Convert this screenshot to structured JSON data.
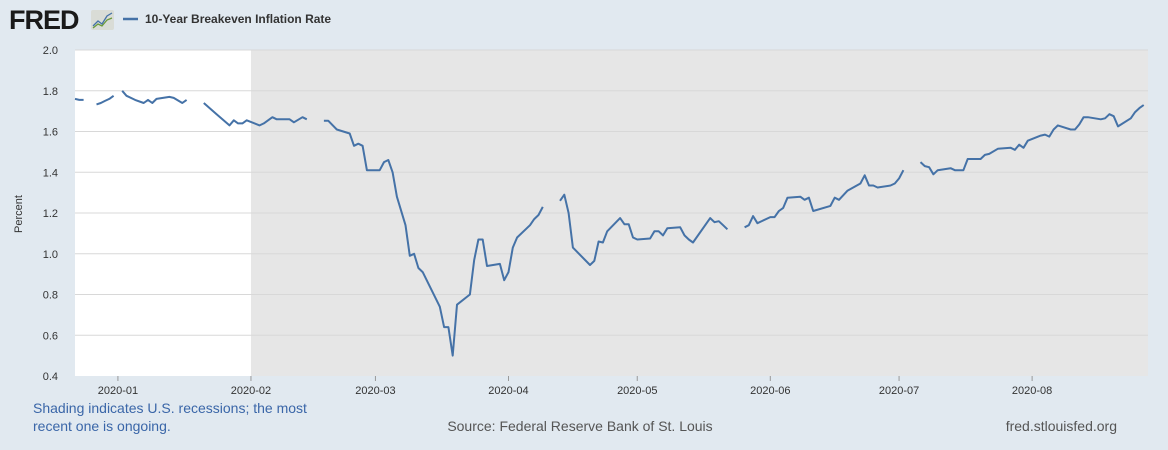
{
  "header": {
    "logo_text": "FRED",
    "legend_label": "10-Year Breakeven Inflation Rate"
  },
  "footer": {
    "shading_note_line1": "Shading indicates U.S. recessions; the most",
    "shading_note_line2": "recent one is ongoing.",
    "source": "Source: Federal Reserve Bank of St. Louis",
    "site": "fred.stlouisfed.org"
  },
  "colors": {
    "series": "#4572a7",
    "recession": "#e6e6e6",
    "plot_bg": "#ffffff",
    "page_bg": "#e1e9f0",
    "note_text": "#3a66a8"
  },
  "chart_data": {
    "type": "line",
    "title": "10-Year Breakeven Inflation Rate",
    "xlabel": "",
    "ylabel": "Percent",
    "xlim": [
      "2019-12-22",
      "2020-08-28"
    ],
    "ylim": [
      0.4,
      2.0
    ],
    "yticks": [
      0.4,
      0.6,
      0.8,
      1.0,
      1.2,
      1.4,
      1.6,
      1.8,
      2.0
    ],
    "xticks": [
      "2020-01",
      "2020-02",
      "2020-03",
      "2020-04",
      "2020-05",
      "2020-06",
      "2020-07",
      "2020-08"
    ],
    "grid": "horizontal",
    "recession_start": "2020-02-01",
    "series": [
      {
        "name": "10-Year Breakeven Inflation Rate",
        "segments": [
          [
            [
              "2019-12-22",
              1.76
            ],
            [
              "2019-12-23",
              1.755
            ],
            [
              "2019-12-24",
              1.755
            ]
          ],
          [
            [
              "2019-12-27",
              1.733
            ],
            [
              "2019-12-28",
              1.74
            ],
            [
              "2019-12-29",
              1.75
            ],
            [
              "2019-12-30",
              1.76
            ],
            [
              "2019-12-31",
              1.775
            ]
          ],
          [
            [
              "2020-01-02",
              1.8
            ],
            [
              "2020-01-03",
              1.775
            ],
            [
              "2020-01-05",
              1.755
            ],
            [
              "2020-01-07",
              1.74
            ],
            [
              "2020-01-08",
              1.755
            ],
            [
              "2020-01-09",
              1.74
            ],
            [
              "2020-01-10",
              1.76
            ],
            [
              "2020-01-13",
              1.77
            ],
            [
              "2020-01-14",
              1.765
            ],
            [
              "2020-01-16",
              1.74
            ],
            [
              "2020-01-17",
              1.755
            ]
          ],
          [
            [
              "2020-01-21",
              1.74
            ],
            [
              "2020-01-24",
              1.685
            ],
            [
              "2020-01-27",
              1.63
            ],
            [
              "2020-01-28",
              1.655
            ],
            [
              "2020-01-29",
              1.64
            ],
            [
              "2020-01-30",
              1.64
            ],
            [
              "2020-01-31",
              1.655
            ],
            [
              "2020-02-03",
              1.63
            ],
            [
              "2020-02-04",
              1.64
            ],
            [
              "2020-02-06",
              1.67
            ],
            [
              "2020-02-07",
              1.66
            ],
            [
              "2020-02-10",
              1.66
            ],
            [
              "2020-02-11",
              1.645
            ],
            [
              "2020-02-13",
              1.67
            ],
            [
              "2020-02-14",
              1.66
            ]
          ],
          [
            [
              "2020-02-18",
              1.653
            ],
            [
              "2020-02-19",
              1.653
            ],
            [
              "2020-02-21",
              1.61
            ],
            [
              "2020-02-24",
              1.59
            ],
            [
              "2020-02-25",
              1.53
            ],
            [
              "2020-02-26",
              1.54
            ],
            [
              "2020-02-27",
              1.53
            ],
            [
              "2020-02-28",
              1.41
            ],
            [
              "2020-03-02",
              1.41
            ],
            [
              "2020-03-03",
              1.45
            ],
            [
              "2020-03-04",
              1.46
            ],
            [
              "2020-03-05",
              1.4
            ],
            [
              "2020-03-06",
              1.28
            ],
            [
              "2020-03-08",
              1.14
            ],
            [
              "2020-03-09",
              0.99
            ],
            [
              "2020-03-10",
              1.0
            ],
            [
              "2020-03-11",
              0.93
            ],
            [
              "2020-03-12",
              0.91
            ],
            [
              "2020-03-16",
              0.74
            ],
            [
              "2020-03-17",
              0.64
            ],
            [
              "2020-03-18",
              0.64
            ],
            [
              "2020-03-19",
              0.5
            ],
            [
              "2020-03-20",
              0.75
            ],
            [
              "2020-03-23",
              0.8
            ],
            [
              "2020-03-24",
              0.97
            ],
            [
              "2020-03-25",
              1.07
            ],
            [
              "2020-03-26",
              1.07
            ],
            [
              "2020-03-27",
              0.94
            ],
            [
              "2020-03-30",
              0.95
            ],
            [
              "2020-03-31",
              0.87
            ],
            [
              "2020-04-01",
              0.91
            ],
            [
              "2020-04-02",
              1.03
            ],
            [
              "2020-04-03",
              1.08
            ],
            [
              "2020-04-06",
              1.14
            ],
            [
              "2020-04-07",
              1.17
            ],
            [
              "2020-04-08",
              1.19
            ],
            [
              "2020-04-09",
              1.23
            ]
          ],
          [
            [
              "2020-04-13",
              1.26
            ],
            [
              "2020-04-14",
              1.29
            ],
            [
              "2020-04-15",
              1.2
            ],
            [
              "2020-04-16",
              1.03
            ],
            [
              "2020-04-20",
              0.945
            ],
            [
              "2020-04-21",
              0.965
            ],
            [
              "2020-04-22",
              1.06
            ],
            [
              "2020-04-23",
              1.055
            ],
            [
              "2020-04-24",
              1.11
            ],
            [
              "2020-04-27",
              1.175
            ],
            [
              "2020-04-28",
              1.145
            ],
            [
              "2020-04-29",
              1.145
            ],
            [
              "2020-04-30",
              1.08
            ],
            [
              "2020-05-01",
              1.07
            ],
            [
              "2020-05-04",
              1.075
            ],
            [
              "2020-05-05",
              1.11
            ],
            [
              "2020-05-06",
              1.11
            ],
            [
              "2020-05-07",
              1.09
            ],
            [
              "2020-05-08",
              1.125
            ],
            [
              "2020-05-11",
              1.13
            ],
            [
              "2020-05-12",
              1.09
            ],
            [
              "2020-05-13",
              1.07
            ],
            [
              "2020-05-14",
              1.055
            ],
            [
              "2020-05-18",
              1.175
            ],
            [
              "2020-05-19",
              1.155
            ],
            [
              "2020-05-20",
              1.16
            ],
            [
              "2020-05-21",
              1.14
            ],
            [
              "2020-05-22",
              1.12
            ]
          ],
          [
            [
              "2020-05-26",
              1.13
            ],
            [
              "2020-05-27",
              1.14
            ],
            [
              "2020-05-28",
              1.185
            ],
            [
              "2020-05-29",
              1.15
            ],
            [
              "2020-06-01",
              1.18
            ],
            [
              "2020-06-02",
              1.18
            ],
            [
              "2020-06-03",
              1.21
            ],
            [
              "2020-06-04",
              1.225
            ],
            [
              "2020-06-05",
              1.275
            ],
            [
              "2020-06-08",
              1.28
            ],
            [
              "2020-06-09",
              1.265
            ],
            [
              "2020-06-10",
              1.275
            ],
            [
              "2020-06-11",
              1.21
            ],
            [
              "2020-06-15",
              1.235
            ],
            [
              "2020-06-16",
              1.275
            ],
            [
              "2020-06-17",
              1.265
            ],
            [
              "2020-06-19",
              1.31
            ],
            [
              "2020-06-22",
              1.345
            ],
            [
              "2020-06-23",
              1.385
            ],
            [
              "2020-06-24",
              1.335
            ],
            [
              "2020-06-25",
              1.335
            ],
            [
              "2020-06-26",
              1.325
            ],
            [
              "2020-06-29",
              1.335
            ],
            [
              "2020-06-30",
              1.345
            ],
            [
              "2020-07-01",
              1.37
            ],
            [
              "2020-07-02",
              1.41
            ]
          ],
          [
            [
              "2020-07-06",
              1.45
            ],
            [
              "2020-07-07",
              1.43
            ],
            [
              "2020-07-08",
              1.425
            ],
            [
              "2020-07-09",
              1.39
            ],
            [
              "2020-07-10",
              1.41
            ],
            [
              "2020-07-13",
              1.42
            ],
            [
              "2020-07-14",
              1.41
            ],
            [
              "2020-07-16",
              1.41
            ],
            [
              "2020-07-17",
              1.465
            ],
            [
              "2020-07-20",
              1.465
            ],
            [
              "2020-07-21",
              1.485
            ],
            [
              "2020-07-22",
              1.49
            ],
            [
              "2020-07-24",
              1.515
            ],
            [
              "2020-07-27",
              1.52
            ],
            [
              "2020-07-28",
              1.51
            ],
            [
              "2020-07-29",
              1.535
            ],
            [
              "2020-07-30",
              1.52
            ],
            [
              "2020-07-31",
              1.555
            ],
            [
              "2020-08-03",
              1.58
            ],
            [
              "2020-08-04",
              1.585
            ],
            [
              "2020-08-05",
              1.575
            ],
            [
              "2020-08-06",
              1.61
            ],
            [
              "2020-08-07",
              1.63
            ],
            [
              "2020-08-10",
              1.61
            ],
            [
              "2020-08-11",
              1.61
            ],
            [
              "2020-08-12",
              1.635
            ],
            [
              "2020-08-13",
              1.67
            ],
            [
              "2020-08-14",
              1.67
            ],
            [
              "2020-08-17",
              1.66
            ],
            [
              "2020-08-18",
              1.665
            ],
            [
              "2020-08-19",
              1.685
            ],
            [
              "2020-08-20",
              1.675
            ],
            [
              "2020-08-21",
              1.625
            ],
            [
              "2020-08-24",
              1.665
            ],
            [
              "2020-08-25",
              1.695
            ],
            [
              "2020-08-26",
              1.715
            ],
            [
              "2020-08-27",
              1.73
            ]
          ]
        ]
      }
    ]
  }
}
